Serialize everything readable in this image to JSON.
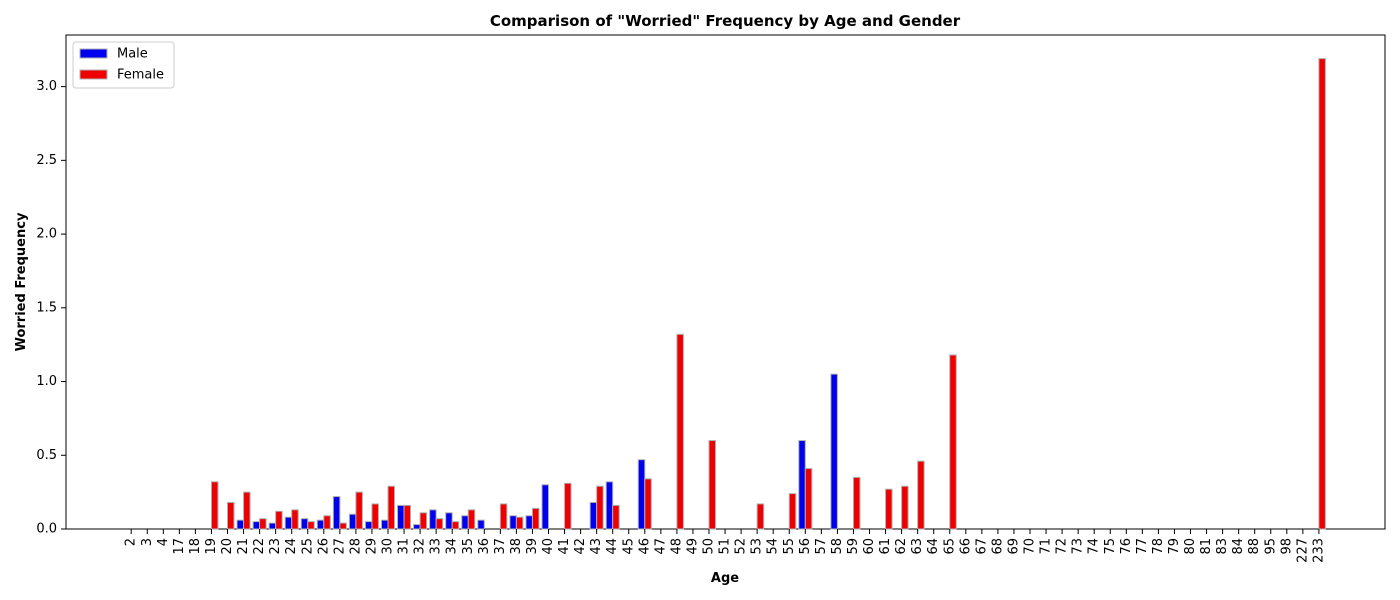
{
  "chart_data": {
    "type": "bar",
    "title": "Comparison of \"Worried\" Frequency by Age and Gender",
    "xlabel": "Age",
    "ylabel": "Worried Frequency",
    "ylim": [
      0,
      3.35
    ],
    "yticks": [
      0.0,
      0.5,
      1.0,
      1.5,
      2.0,
      2.5,
      3.0
    ],
    "ytick_labels": [
      "0.0",
      "0.5",
      "1.0",
      "1.5",
      "2.0",
      "2.5",
      "3.0"
    ],
    "grid": false,
    "legend_position": "top-left",
    "categories": [
      "2",
      "3",
      "4",
      "17",
      "18",
      "19",
      "20",
      "21",
      "22",
      "23",
      "24",
      "25",
      "26",
      "27",
      "28",
      "29",
      "30",
      "31",
      "32",
      "33",
      "34",
      "35",
      "36",
      "37",
      "38",
      "39",
      "40",
      "41",
      "42",
      "43",
      "44",
      "45",
      "46",
      "47",
      "48",
      "49",
      "50",
      "51",
      "52",
      "53",
      "54",
      "55",
      "56",
      "57",
      "58",
      "59",
      "60",
      "61",
      "62",
      "63",
      "64",
      "65",
      "66",
      "67",
      "68",
      "69",
      "70",
      "71",
      "72",
      "73",
      "74",
      "75",
      "76",
      "77",
      "78",
      "79",
      "80",
      "81",
      "83",
      "84",
      "88",
      "95",
      "98",
      "227",
      "233"
    ],
    "series": [
      {
        "name": "Male",
        "color": "#0000ee",
        "values": [
          0,
          0,
          0,
          0,
          0,
          0,
          0,
          0.06,
          0.05,
          0.04,
          0.08,
          0.07,
          0.06,
          0.22,
          0.1,
          0.05,
          0.06,
          0.16,
          0.03,
          0.13,
          0.11,
          0.09,
          0.06,
          0,
          0.09,
          0.09,
          0.3,
          0,
          0,
          0.18,
          0.32,
          0,
          0.47,
          0,
          0,
          0,
          0,
          0,
          0,
          0,
          0,
          0,
          0.6,
          0,
          1.05,
          0,
          0,
          0,
          0,
          0,
          0,
          0,
          0,
          0,
          0,
          0,
          0,
          0,
          0,
          0,
          0,
          0,
          0,
          0,
          0,
          0,
          0,
          0,
          0,
          0,
          0,
          0,
          0,
          0,
          0
        ]
      },
      {
        "name": "Female",
        "color": "#ee0000",
        "values": [
          0,
          0,
          0,
          0,
          0,
          0.32,
          0.18,
          0.25,
          0.07,
          0.12,
          0.13,
          0.05,
          0.09,
          0.04,
          0.25,
          0.17,
          0.29,
          0.16,
          0.11,
          0.07,
          0.05,
          0.13,
          0,
          0.17,
          0.08,
          0.14,
          0,
          0.31,
          0,
          0.29,
          0.16,
          0,
          0.34,
          0,
          1.32,
          0,
          0.6,
          0,
          0,
          0.17,
          0,
          0.24,
          0.41,
          0,
          0,
          0.35,
          0,
          0.27,
          0.29,
          0.46,
          0,
          1.18,
          0,
          0,
          0,
          0,
          0,
          0,
          0,
          0,
          0,
          0,
          0,
          0,
          0,
          0,
          0,
          0,
          0,
          0,
          0,
          0,
          0,
          0,
          3.19
        ]
      }
    ]
  }
}
